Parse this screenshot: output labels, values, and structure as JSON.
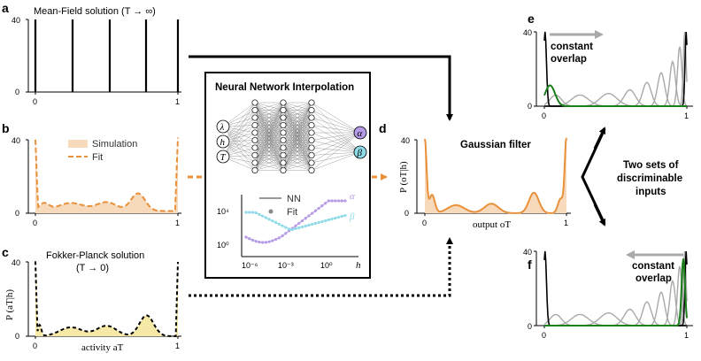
{
  "panel_a": {
    "letter": "a",
    "title": "Mean-Field solution (T → ∞)",
    "ytick": "40",
    "ytick0": "0",
    "xtick0": "0",
    "xtick1": "1"
  },
  "panel_b": {
    "letter": "b",
    "ytick": "40",
    "ytick0": "0",
    "xtick0": "0",
    "xtick1": "1",
    "legend_sim": "Simulation",
    "legend_fit": "Fit"
  },
  "panel_c": {
    "letter": "c",
    "title": "Fokker-Planck solution",
    "subtitle": "(T → 0)",
    "ytick": "40",
    "ytick0": "0",
    "xtick0": "0",
    "xtick1": "1",
    "ylabel": "P (aT|h)",
    "xlabel": "activity aT"
  },
  "nn": {
    "title": "Neural Network Interpolation",
    "inputs": [
      "λ",
      "h",
      "T"
    ],
    "outputs": [
      "α",
      "β"
    ],
    "legend_nn": "NN",
    "legend_fit": "Fit",
    "ytick_top": "10⁴",
    "ytick_bot": "10⁰",
    "xticks": [
      "10⁻⁶",
      "10⁻³",
      "10⁰"
    ],
    "xlabel": "h",
    "alpha_label": "α",
    "beta_label": "β"
  },
  "panel_d": {
    "letter": "d",
    "title": "Gaussian filter",
    "ytick": "40",
    "ytick0": "0",
    "xtick0": "0",
    "xtick1": "1",
    "ylabel": "P (oT|h)",
    "xlabel": "output oT"
  },
  "middle_text": {
    "line1": "Two sets of",
    "line2": "discriminable",
    "line3": "inputs"
  },
  "panel_e": {
    "letter": "e",
    "ytick": "40",
    "ytick0": "0",
    "xtick0": "0",
    "xtick1": "1",
    "label1": "constant",
    "label2": "overlap"
  },
  "panel_f": {
    "letter": "f",
    "ytick": "40",
    "ytick0": "0",
    "xtick0": "0",
    "xtick1": "1",
    "label1": "constant",
    "label2": "overlap"
  },
  "colors": {
    "orange": "#e8913a",
    "orange_fill": "#f7d9bc",
    "yellow_fill": "#f6e8a6",
    "purple": "#b59ae6",
    "cyan": "#8fdce8",
    "green": "#1a7f1a",
    "gray": "#a9a9a9"
  }
}
